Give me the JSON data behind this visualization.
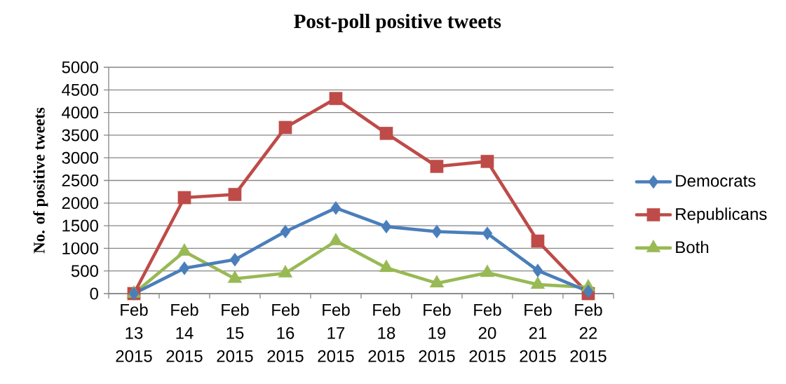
{
  "chart_data": {
    "type": "line",
    "title": "Post-poll positive tweets",
    "ylabel": "No. of positive tweets",
    "categories": [
      "Feb 13 2015",
      "Feb 14 2015",
      "Feb 15 2015",
      "Feb 16 2015",
      "Feb 17 2015",
      "Feb 18 2015",
      "Feb 19 2015",
      "Feb 20 2015",
      "Feb 21 2015",
      "Feb 22 2015"
    ],
    "series": [
      {
        "name": "Democrats",
        "color": "#4a7ebb",
        "marker": "diamond",
        "values": [
          0,
          560,
          750,
          1370,
          1890,
          1480,
          1370,
          1330,
          510,
          50
        ]
      },
      {
        "name": "Republicans",
        "color": "#be4b48",
        "marker": "square",
        "values": [
          0,
          2120,
          2190,
          3670,
          4310,
          3540,
          2810,
          2920,
          1160,
          0
        ]
      },
      {
        "name": "Both",
        "color": "#98b954",
        "marker": "triangle",
        "values": [
          0,
          930,
          330,
          450,
          1160,
          570,
          230,
          460,
          200,
          140
        ]
      }
    ],
    "ylim": [
      0,
      5000
    ],
    "yticks": [
      0,
      500,
      1000,
      1500,
      2000,
      2500,
      3000,
      3500,
      4000,
      4500,
      5000
    ],
    "grid": "y",
    "legend": "right",
    "line_style": "solid"
  }
}
